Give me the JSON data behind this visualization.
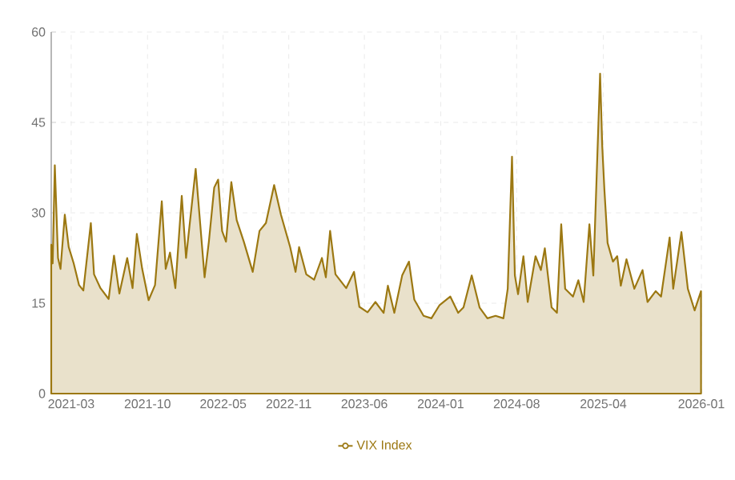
{
  "chart_data": {
    "type": "area",
    "xlim": [
      "2021-01-04",
      "2026-01-01"
    ],
    "ylim": [
      0,
      60
    ],
    "yticks": [
      0,
      15,
      30,
      45,
      60
    ],
    "xticks": [
      "2021-03",
      "2021-10",
      "2022-05",
      "2022-11",
      "2023-06",
      "2024-01",
      "2024-08",
      "2025-04",
      "2026-01"
    ],
    "grid": true,
    "legend": "bottom",
    "series": [
      {
        "name": "VIX Index",
        "color": "#9c7812",
        "x": [
          "2021-01-04",
          "2021-01-08",
          "2021-01-14",
          "2021-01-23",
          "2021-01-30",
          "2021-02-11",
          "2021-02-22",
          "2021-03-08",
          "2021-03-23",
          "2021-04-04",
          "2021-04-25",
          "2021-05-04",
          "2021-05-22",
          "2021-06-14",
          "2021-06-29",
          "2021-07-14",
          "2021-08-05",
          "2021-08-20",
          "2021-09-01",
          "2021-09-16",
          "2021-10-04",
          "2021-10-22",
          "2021-11-10",
          "2021-11-21",
          "2021-12-03",
          "2021-12-18",
          "2022-01-05",
          "2022-01-17",
          "2022-02-13",
          "2022-03-10",
          "2022-03-22",
          "2022-04-06",
          "2022-04-17",
          "2022-04-28",
          "2022-05-09",
          "2022-05-24",
          "2022-06-08",
          "2022-06-28",
          "2022-07-23",
          "2022-08-11",
          "2022-08-29",
          "2022-09-21",
          "2022-10-10",
          "2022-11-05",
          "2022-11-20",
          "2022-11-30",
          "2022-12-20",
          "2023-01-11",
          "2023-02-02",
          "2023-02-13",
          "2023-02-25",
          "2023-03-12",
          "2023-04-11",
          "2023-05-03",
          "2023-05-18",
          "2023-06-10",
          "2023-07-02",
          "2023-07-25",
          "2023-08-06",
          "2023-08-24",
          "2023-09-15",
          "2023-10-04",
          "2023-10-19",
          "2023-11-14",
          "2023-12-06",
          "2023-12-29",
          "2024-01-28",
          "2024-02-19",
          "2024-03-05",
          "2024-03-28",
          "2024-04-19",
          "2024-05-11",
          "2024-06-03",
          "2024-06-25",
          "2024-07-07",
          "2024-07-19",
          "2024-07-27",
          "2024-08-05",
          "2024-08-20",
          "2024-09-01",
          "2024-09-23",
          "2024-10-08",
          "2024-10-19",
          "2024-11-07",
          "2024-11-22",
          "2024-12-04",
          "2024-12-15",
          "2025-01-06",
          "2025-01-21",
          "2025-02-05",
          "2025-02-21",
          "2025-03-04",
          "2025-03-23",
          "2025-03-29",
          "2025-04-04",
          "2025-04-13",
          "2025-04-28",
          "2025-05-10",
          "2025-05-20",
          "2025-06-05",
          "2025-06-27",
          "2025-07-20",
          "2025-08-03",
          "2025-08-26",
          "2025-09-10",
          "2025-10-04",
          "2025-10-14",
          "2025-11-06",
          "2025-11-24",
          "2025-12-13",
          "2025-12-31"
        ],
        "values": [
          24.7,
          21.6,
          37.9,
          22.5,
          20.7,
          29.7,
          24.3,
          21.6,
          18,
          17.1,
          28.3,
          19.8,
          17.5,
          15.7,
          22.9,
          16.6,
          22.5,
          17.5,
          26.5,
          20.7,
          15.5,
          18,
          31.9,
          20.7,
          23.4,
          17.5,
          32.8,
          22.5,
          37.3,
          19.3,
          25.2,
          34.2,
          35.5,
          27,
          25.2,
          35.1,
          28.8,
          25.2,
          20.2,
          27,
          28.3,
          34.6,
          29.7,
          24.3,
          20.2,
          24.3,
          19.8,
          18.9,
          22.5,
          19.3,
          27,
          19.8,
          17.5,
          20.2,
          14.4,
          13.5,
          15.2,
          13.4,
          17.9,
          13.4,
          19.6,
          21.9,
          15.6,
          12.9,
          12.5,
          14.7,
          16.1,
          13.4,
          14.3,
          19.6,
          14.3,
          12.5,
          12.9,
          12.5,
          17.4,
          39.3,
          19.6,
          16.5,
          22.8,
          15.2,
          22.8,
          20.5,
          24.1,
          14.3,
          13.4,
          28.1,
          17.4,
          16.1,
          18.8,
          15.2,
          28.1,
          19.6,
          53.1,
          41.1,
          33.9,
          25,
          21.9,
          22.8,
          17.9,
          22.3,
          17.4,
          20.5,
          15.2,
          17,
          16.1,
          25.9,
          17.4,
          26.8,
          17.4,
          13.8,
          17
        ]
      }
    ]
  }
}
